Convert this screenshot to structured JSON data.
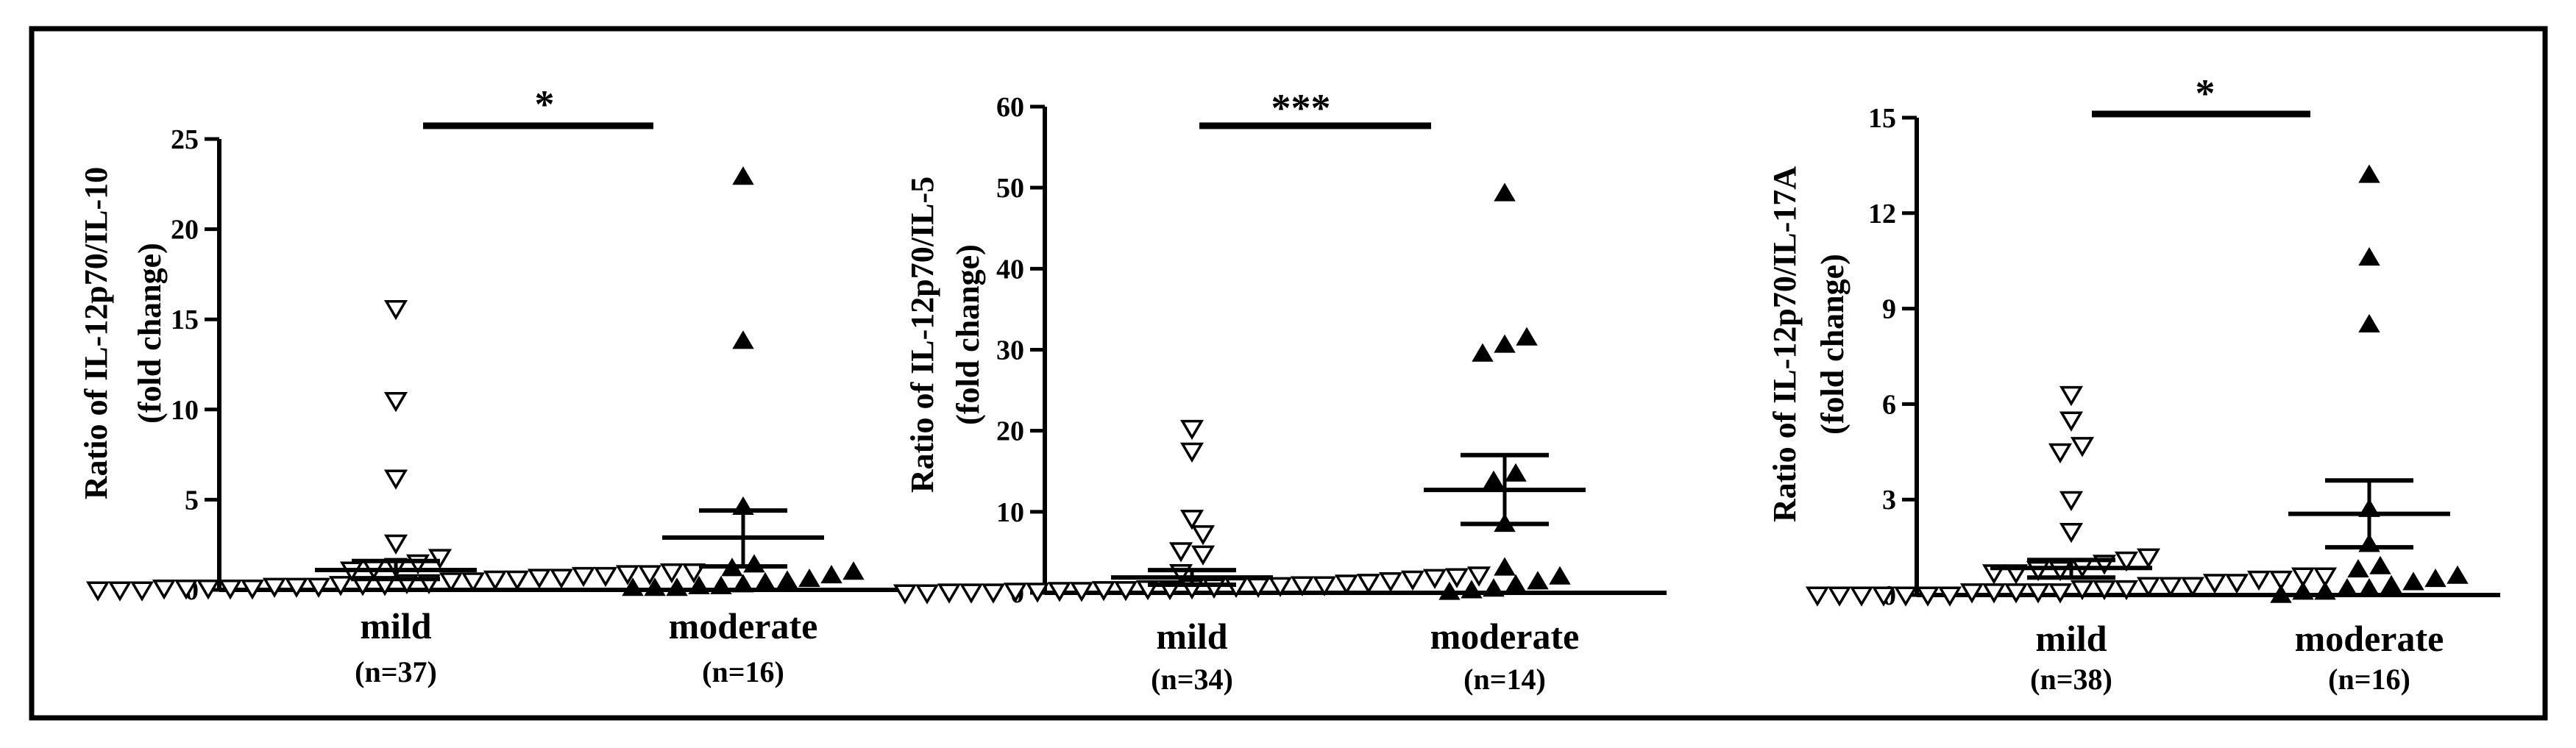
{
  "chart_data": [
    {
      "type": "scatter",
      "ylabel_line1": "Ratio of IL-12p70/IL-10",
      "ylabel_line2": "(fold change)",
      "ylim": [
        0,
        25
      ],
      "yticks": [
        0,
        5,
        10,
        15,
        20,
        25
      ],
      "significance": "*",
      "groups": [
        {
          "label": "mild",
          "n_label": "(n=37)",
          "marker": "open-triangle-down",
          "mean": 1.1,
          "sem_upper": 1.6,
          "sem_lower": 0.6,
          "values": [
            15.6,
            10.5,
            6.2,
            2.6,
            1.8,
            1.5,
            1.3,
            1.2,
            1.1,
            1.0,
            1.0,
            0.9,
            0.9,
            0.8,
            0.8,
            0.7,
            0.7,
            0.6,
            0.6,
            0.5,
            0.5,
            0.4,
            0.4,
            0.3,
            0.3,
            0.3,
            0.2,
            0.2,
            0.2,
            0.1,
            0.1,
            0.1,
            0.1,
            0.1,
            0.0,
            0.0,
            0.0
          ]
        },
        {
          "label": "moderate",
          "n_label": "(n=16)",
          "marker": "filled-triangle-up",
          "mean": 2.9,
          "sem_upper": 4.4,
          "sem_lower": 1.3,
          "values": [
            22.9,
            13.8,
            4.6,
            1.4,
            1.2,
            1.0,
            0.8,
            0.6,
            0.5,
            0.4,
            0.3,
            0.2,
            0.2,
            0.1,
            0.1,
            0.1
          ]
        }
      ]
    },
    {
      "type": "scatter",
      "ylabel_line1": "Ratio of IL-12p70/IL-5",
      "ylabel_line2": "(fold change)",
      "ylim": [
        0,
        60
      ],
      "yticks": [
        0,
        10,
        20,
        30,
        40,
        50,
        60
      ],
      "significance": "***",
      "groups": [
        {
          "label": "mild",
          "n_label": "(n=34)",
          "marker": "open-triangle-down",
          "mean": 1.9,
          "sem_upper": 2.8,
          "sem_lower": 1.0,
          "values": [
            20.3,
            17.5,
            9.2,
            7.3,
            5.2,
            4.8,
            2.5,
            2.2,
            2.0,
            1.9,
            1.7,
            1.5,
            1.3,
            1.2,
            1.0,
            1.0,
            0.9,
            0.8,
            0.8,
            0.7,
            0.6,
            0.5,
            0.5,
            0.4,
            0.4,
            0.3,
            0.3,
            0.2,
            0.2,
            0.1,
            0.1,
            0.1,
            0.0,
            0.0
          ]
        },
        {
          "label": "moderate",
          "n_label": "(n=14)",
          "marker": "filled-triangle-up",
          "mean": 12.7,
          "sem_upper": 17.0,
          "sem_lower": 8.5,
          "values": [
            49.3,
            31.5,
            30.6,
            29.5,
            14.7,
            13.8,
            8.5,
            3.1,
            2.0,
            1.4,
            1.0,
            0.5,
            0.3,
            0.1
          ]
        }
      ]
    },
    {
      "type": "scatter",
      "ylabel_line1": "Ratio of IL-12p70/IL-17A",
      "ylabel_line2": "(fold change)",
      "ylim": [
        0,
        15
      ],
      "yticks": [
        0,
        3,
        6,
        9,
        12,
        15
      ],
      "significance": "*",
      "groups": [
        {
          "label": "mild",
          "n_label": "(n=38)",
          "marker": "open-triangle-down",
          "mean": 0.85,
          "sem_upper": 1.1,
          "sem_lower": 0.55,
          "values": [
            6.3,
            5.5,
            4.7,
            4.5,
            3.0,
            2.0,
            1.2,
            1.1,
            1.0,
            0.9,
            0.8,
            0.8,
            0.7,
            0.7,
            0.6,
            0.6,
            0.5,
            0.5,
            0.4,
            0.4,
            0.3,
            0.3,
            0.3,
            0.2,
            0.2,
            0.2,
            0.1,
            0.1,
            0.1,
            0.1,
            0.1,
            0.0,
            0.0,
            0.0,
            0.0,
            0.0,
            0.0,
            0.0
          ]
        },
        {
          "label": "moderate",
          "n_label": "(n=16)",
          "marker": "filled-triangle-up",
          "mean": 2.55,
          "sem_upper": 3.6,
          "sem_lower": 1.5,
          "values": [
            13.2,
            10.6,
            8.5,
            2.7,
            1.6,
            0.9,
            0.8,
            0.6,
            0.5,
            0.4,
            0.3,
            0.2,
            0.2,
            0.1,
            0.1,
            0.0
          ]
        }
      ]
    }
  ]
}
